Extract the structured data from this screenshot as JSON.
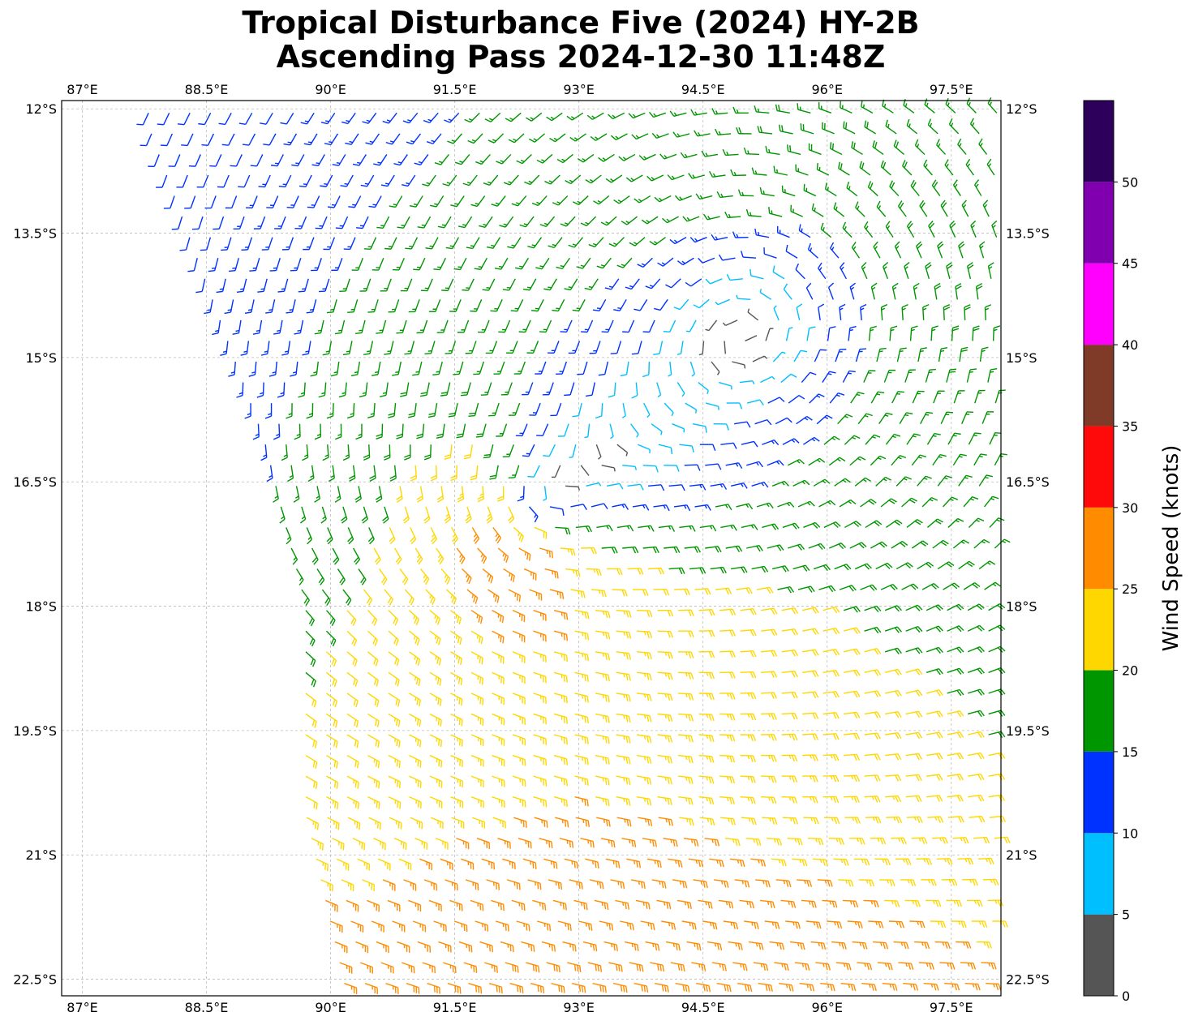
{
  "title": {
    "line1": "Tropical Disturbance Five (2024) HY-2B",
    "line2": "Ascending Pass 2024-12-30 11:48Z"
  },
  "map": {
    "lon_range": [
      86.75,
      98.1
    ],
    "lat_range": [
      -22.7,
      -11.9
    ],
    "lon_ticks": [
      87,
      88.5,
      90,
      91.5,
      93,
      94.5,
      96,
      97.5
    ],
    "lon_labels": [
      "87°E",
      "88.5°E",
      "90°E",
      "91.5°E",
      "93°E",
      "94.5°E",
      "96°E",
      "97.5°E"
    ],
    "lat_ticks": [
      -12,
      -13.5,
      -15,
      -16.5,
      -18,
      -19.5,
      -21,
      -22.5
    ],
    "lat_labels": [
      "12°S",
      "13.5°S",
      "15°S",
      "16.5°S",
      "18°S",
      "19.5°S",
      "21°S",
      "22.5°S"
    ],
    "gridlines": true,
    "wind_field": {
      "type": "barbs",
      "vortex_centers": [
        {
          "lon": 92.4,
          "lat": -16.8
        },
        {
          "lon": 95.3,
          "lat": -14.5
        }
      ],
      "swath_west_edge": [
        [
          87.8,
          -12.2
        ],
        [
          89.2,
          -16.0
        ],
        [
          89.7,
          -18.0
        ],
        [
          89.7,
          -20.5
        ],
        [
          90.2,
          -22.7
        ]
      ]
    }
  },
  "colorbar": {
    "label": "Wind Speed (knots)",
    "bins": [
      0,
      5,
      10,
      15,
      20,
      25,
      30,
      35,
      40,
      45,
      50,
      55
    ],
    "tick_values": [
      0,
      5,
      10,
      15,
      20,
      25,
      30,
      35,
      40,
      45,
      50
    ],
    "tick_labels": [
      "0",
      "5",
      "10",
      "15",
      "20",
      "25",
      "30",
      "35",
      "40",
      "45",
      "50"
    ],
    "colors": [
      "#555555",
      "#00bfff",
      "#0032ff",
      "#009600",
      "#ffd700",
      "#ff8c00",
      "#ff0a0a",
      "#7f3a28",
      "#ff00ff",
      "#8000b0",
      "#2d005c"
    ]
  }
}
